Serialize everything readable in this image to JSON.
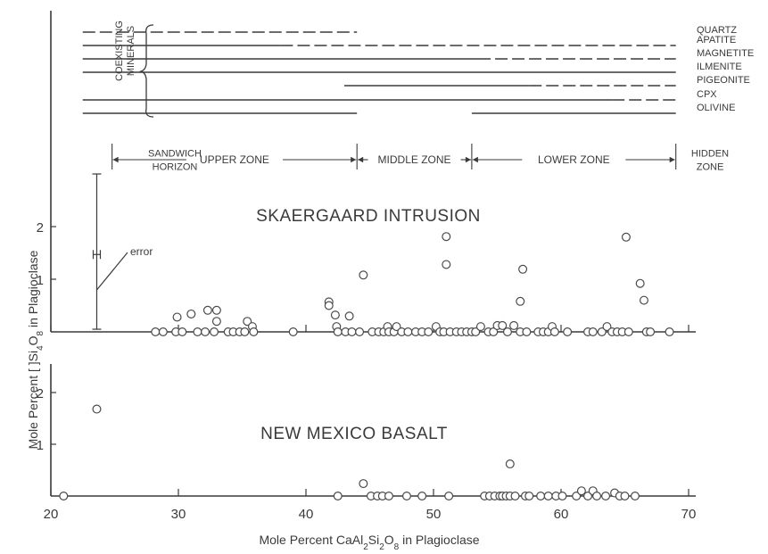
{
  "chart_data": [
    {
      "type": "scatter",
      "title": "SKAERGAARD INTRUSION",
      "ylabel": "Mole Percent [ ]Si4O8 in Plagioclase",
      "yticks": [
        1,
        2
      ],
      "ylim": [
        0,
        2
      ],
      "error_label": "error",
      "error_bar": {
        "x": 23.6,
        "center": 1.47,
        "low": 0.05,
        "high": 3.0
      },
      "minerals_label": "COEXISTING MINERALS",
      "minerals": [
        {
          "name": "QUARTZ",
          "solid": [],
          "dashed": [
            [
              22.5,
              44
            ]
          ]
        },
        {
          "name": "APATITE",
          "solid": [
            [
              22.5,
              38
            ]
          ],
          "dashed": [
            [
              38,
              69
            ]
          ]
        },
        {
          "name": "MAGNETITE",
          "solid": [
            [
              22.5,
              53.5
            ]
          ],
          "dashed": [
            [
              53.5,
              69
            ]
          ]
        },
        {
          "name": "ILMENITE",
          "solid": [
            [
              22.5,
              69
            ]
          ],
          "dashed": []
        },
        {
          "name": "PIGEONITE",
          "solid": [
            [
              43,
              57.5
            ]
          ],
          "dashed": [
            [
              57.5,
              69
            ]
          ]
        },
        {
          "name": "CPX",
          "solid": [
            [
              22.5,
              64
            ]
          ],
          "dashed": [
            [
              64,
              69
            ]
          ]
        },
        {
          "name": "OLIVINE",
          "solid": [
            [
              22.5,
              44
            ],
            [
              53,
              69
            ]
          ],
          "dashed": []
        }
      ],
      "zones": [
        {
          "label": "SANDWICH\nHORIZON",
          "from": 20,
          "to": 24.8
        },
        {
          "label": "UPPER ZONE",
          "from": 24.8,
          "to": 44
        },
        {
          "label": "MIDDLE ZONE",
          "from": 44,
          "to": 53
        },
        {
          "label": "LOWER ZONE",
          "from": 53,
          "to": 69
        },
        {
          "label": "HIDDEN\nZONE",
          "from": 69,
          "to": 72
        }
      ],
      "points": [
        [
          28.2,
          0
        ],
        [
          28.8,
          0
        ],
        [
          29.8,
          0
        ],
        [
          29.9,
          0.28
        ],
        [
          30.3,
          0
        ],
        [
          31.0,
          0.34
        ],
        [
          31.5,
          0
        ],
        [
          32.1,
          0
        ],
        [
          32.3,
          0.41
        ],
        [
          32.8,
          0
        ],
        [
          33.0,
          0.2
        ],
        [
          33.0,
          0.41
        ],
        [
          33.9,
          0
        ],
        [
          34.3,
          0
        ],
        [
          34.8,
          0
        ],
        [
          35.2,
          0
        ],
        [
          35.4,
          0.2
        ],
        [
          35.8,
          0.1
        ],
        [
          35.9,
          0
        ],
        [
          39.0,
          0
        ],
        [
          41.8,
          0.57
        ],
        [
          41.8,
          0.5
        ],
        [
          42.3,
          0.32
        ],
        [
          42.4,
          0.1
        ],
        [
          42.5,
          0
        ],
        [
          43.1,
          0
        ],
        [
          43.4,
          0.3
        ],
        [
          43.6,
          0
        ],
        [
          44.2,
          0
        ],
        [
          44.5,
          1.08
        ],
        [
          45.2,
          0
        ],
        [
          45.7,
          0
        ],
        [
          46.1,
          0
        ],
        [
          46.4,
          0.1
        ],
        [
          46.5,
          0
        ],
        [
          46.9,
          0
        ],
        [
          47.1,
          0.1
        ],
        [
          47.5,
          0
        ],
        [
          48.0,
          0
        ],
        [
          48.6,
          0
        ],
        [
          49.1,
          0
        ],
        [
          49.6,
          0
        ],
        [
          50.2,
          0.1
        ],
        [
          50.5,
          0
        ],
        [
          50.8,
          0
        ],
        [
          51.0,
          1.28
        ],
        [
          51.0,
          1.81
        ],
        [
          51.3,
          0
        ],
        [
          51.8,
          0
        ],
        [
          52.2,
          0
        ],
        [
          52.6,
          0
        ],
        [
          53.0,
          0
        ],
        [
          53.3,
          0
        ],
        [
          53.7,
          0.1
        ],
        [
          54.3,
          0
        ],
        [
          54.7,
          0
        ],
        [
          55.0,
          0.12
        ],
        [
          55.4,
          0.12
        ],
        [
          55.8,
          0
        ],
        [
          56.3,
          0.12
        ],
        [
          56.8,
          0
        ],
        [
          56.8,
          0.58
        ],
        [
          57.0,
          1.19
        ],
        [
          57.3,
          0
        ],
        [
          58.2,
          0
        ],
        [
          58.6,
          0
        ],
        [
          59.0,
          0
        ],
        [
          59.3,
          0.1
        ],
        [
          59.5,
          0
        ],
        [
          60.5,
          0
        ],
        [
          62.1,
          0
        ],
        [
          62.5,
          0
        ],
        [
          63.2,
          0
        ],
        [
          63.6,
          0.1
        ],
        [
          64.0,
          0
        ],
        [
          64.4,
          0
        ],
        [
          64.8,
          0
        ],
        [
          65.1,
          1.8
        ],
        [
          65.3,
          0
        ],
        [
          66.2,
          0.92
        ],
        [
          66.5,
          0.6
        ],
        [
          66.7,
          0
        ],
        [
          67.0,
          0
        ],
        [
          68.5,
          0
        ]
      ]
    },
    {
      "type": "scatter",
      "title": "NEW MEXICO BASALT",
      "xlabel_parts": [
        "Mole Percent CaAl",
        "2",
        "Si",
        "2",
        "O",
        "8",
        " in Plagioclase"
      ],
      "ylabel": "Mole Percent [ ]Si4O8 in Plagioclase",
      "xticks": [
        20,
        30,
        40,
        50,
        60,
        70
      ],
      "yticks": [
        1,
        2
      ],
      "xlim": [
        20,
        70
      ],
      "ylim": [
        0,
        2.4
      ],
      "points": [
        [
          21.0,
          0
        ],
        [
          23.6,
          1.68
        ],
        [
          42.5,
          0
        ],
        [
          44.5,
          0.24
        ],
        [
          45.1,
          0
        ],
        [
          45.6,
          0
        ],
        [
          46.0,
          0
        ],
        [
          46.5,
          0
        ],
        [
          47.9,
          0
        ],
        [
          49.1,
          0
        ],
        [
          51.2,
          0
        ],
        [
          54.0,
          0
        ],
        [
          54.4,
          0
        ],
        [
          54.8,
          0
        ],
        [
          55.2,
          0
        ],
        [
          55.4,
          0
        ],
        [
          55.7,
          0
        ],
        [
          56.0,
          0
        ],
        [
          56.0,
          0.62
        ],
        [
          56.4,
          0
        ],
        [
          57.2,
          0
        ],
        [
          57.5,
          0
        ],
        [
          58.4,
          0
        ],
        [
          59.0,
          0
        ],
        [
          59.6,
          0
        ],
        [
          60.1,
          0
        ],
        [
          61.2,
          0
        ],
        [
          61.6,
          0.1
        ],
        [
          62.1,
          0
        ],
        [
          62.5,
          0.1
        ],
        [
          62.8,
          0
        ],
        [
          63.5,
          0
        ],
        [
          64.2,
          0.06
        ],
        [
          64.6,
          0
        ],
        [
          65.0,
          0
        ],
        [
          65.8,
          0
        ]
      ]
    }
  ]
}
